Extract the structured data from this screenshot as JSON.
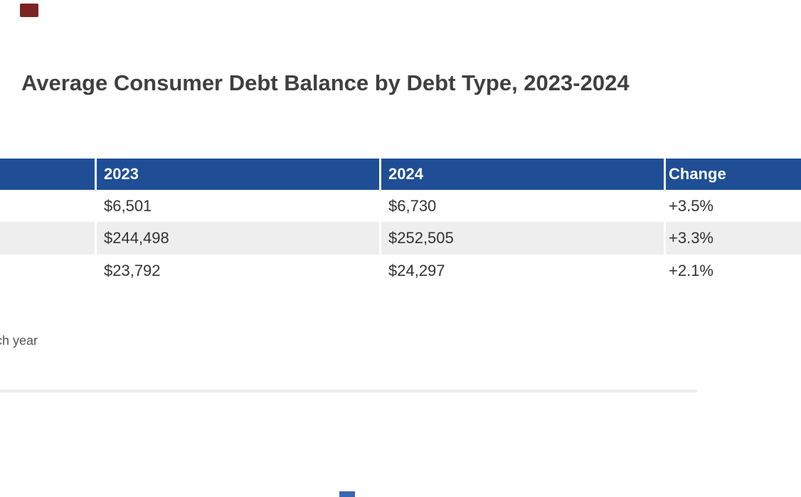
{
  "page": {
    "title": "Average Consumer Debt Balance by Debt Type, 2023-2024",
    "footnote_fragment": "ch year"
  },
  "table": {
    "headers": [
      "",
      "2023",
      "2024",
      "Change"
    ],
    "rows": [
      {
        "label": "",
        "y2023": "$6,501",
        "y2024": "$6,730",
        "change": "+3.5%"
      },
      {
        "label": "",
        "y2023": "$244,498",
        "y2024": "$252,505",
        "change": "+3.3%"
      },
      {
        "label": "",
        "y2023": "$23,792",
        "y2024": "$24,297",
        "change": "+2.1%"
      }
    ]
  },
  "colors": {
    "header_bg": "#1f4e96",
    "header_text": "#ffffff",
    "row_alt_bg": "#eeeeee",
    "cell_text": "#333333",
    "title_text": "#3f3f3f",
    "footnote_text": "#555555",
    "divider": "#ebebeb",
    "top_left_fragment": "#7c2421",
    "bottom_fragment": "#3a67ae"
  },
  "chart_data": {
    "type": "table",
    "title": "Average Consumer Debt Balance by Debt Type, 2023-2024",
    "columns": [
      "",
      "2023",
      "2024",
      "Change"
    ],
    "rows": [
      [
        "",
        "$6,501",
        "$6,730",
        "+3.5%"
      ],
      [
        "",
        "$244,498",
        "$252,505",
        "+3.3%"
      ],
      [
        "",
        "$23,792",
        "$24,297",
        "+2.1%"
      ]
    ],
    "layout": {
      "left_label_column_clipped": true,
      "right_change_column_clipped": true,
      "alternating_row_shading": true
    }
  }
}
